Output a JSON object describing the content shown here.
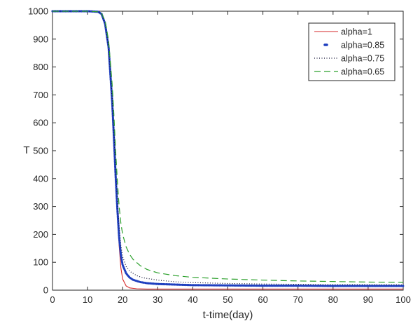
{
  "chart_data": {
    "type": "line",
    "title": "",
    "xlabel": "t-time(day)",
    "ylabel": "T",
    "xlim": [
      0,
      100
    ],
    "ylim": [
      0,
      1000
    ],
    "xticks": [
      0,
      10,
      20,
      30,
      40,
      50,
      60,
      70,
      80,
      90,
      100
    ],
    "yticks": [
      0,
      100,
      200,
      300,
      400,
      500,
      600,
      700,
      800,
      900,
      1000
    ],
    "grid": false,
    "legend_position": "top-right",
    "series": [
      {
        "name": "alpha=1",
        "color": "#d62728",
        "style": "solid",
        "x": [
          0,
          10,
          13,
          14,
          15,
          16,
          17,
          17.5,
          18,
          18.5,
          19,
          19.5,
          20,
          21,
          22,
          24,
          27,
          30,
          40,
          50,
          60,
          70,
          80,
          90,
          100
        ],
        "y": [
          1000,
          1000,
          998,
          990,
          960,
          880,
          700,
          570,
          420,
          280,
          160,
          80,
          40,
          15,
          8,
          5,
          4,
          4,
          4,
          4,
          4,
          4,
          4,
          4,
          4
        ]
      },
      {
        "name": "alpha=0.85",
        "color": "#1f3fbf",
        "style": "dots",
        "x": [
          0,
          10,
          13,
          14,
          15,
          16,
          17,
          17.5,
          18,
          18.5,
          19,
          19.5,
          20,
          21,
          22,
          23,
          25,
          27,
          30,
          35,
          40,
          50,
          60,
          70,
          80,
          90,
          100
        ],
        "y": [
          1000,
          1000,
          998,
          990,
          955,
          870,
          680,
          550,
          410,
          290,
          190,
          125,
          90,
          60,
          45,
          37,
          29,
          25,
          22,
          20,
          18,
          17,
          16,
          16,
          15,
          15,
          15
        ]
      },
      {
        "name": "alpha=0.75",
        "color": "#111133",
        "style": "dotted",
        "x": [
          0,
          10,
          13,
          14,
          15,
          16,
          17,
          17.5,
          18,
          18.5,
          19,
          19.5,
          20,
          21,
          22,
          24,
          26,
          30,
          35,
          40,
          50,
          60,
          70,
          80,
          90,
          100
        ],
        "y": [
          1000,
          1000,
          998,
          990,
          955,
          870,
          690,
          570,
          440,
          320,
          225,
          160,
          120,
          85,
          68,
          52,
          44,
          36,
          30,
          27,
          24,
          22,
          21,
          20,
          20,
          19
        ]
      },
      {
        "name": "alpha=0.65",
        "color": "#2ca02c",
        "style": "dashed",
        "x": [
          0,
          10,
          13,
          14,
          15,
          16,
          17,
          17.5,
          18,
          18.5,
          19,
          19.5,
          20,
          21,
          22,
          23,
          25,
          27,
          30,
          35,
          40,
          50,
          60,
          70,
          80,
          90,
          100
        ],
        "y": [
          1000,
          1000,
          998,
          992,
          965,
          895,
          740,
          630,
          500,
          390,
          300,
          240,
          200,
          155,
          128,
          110,
          88,
          74,
          62,
          52,
          46,
          40,
          36,
          33,
          31,
          29,
          28
        ]
      }
    ]
  }
}
